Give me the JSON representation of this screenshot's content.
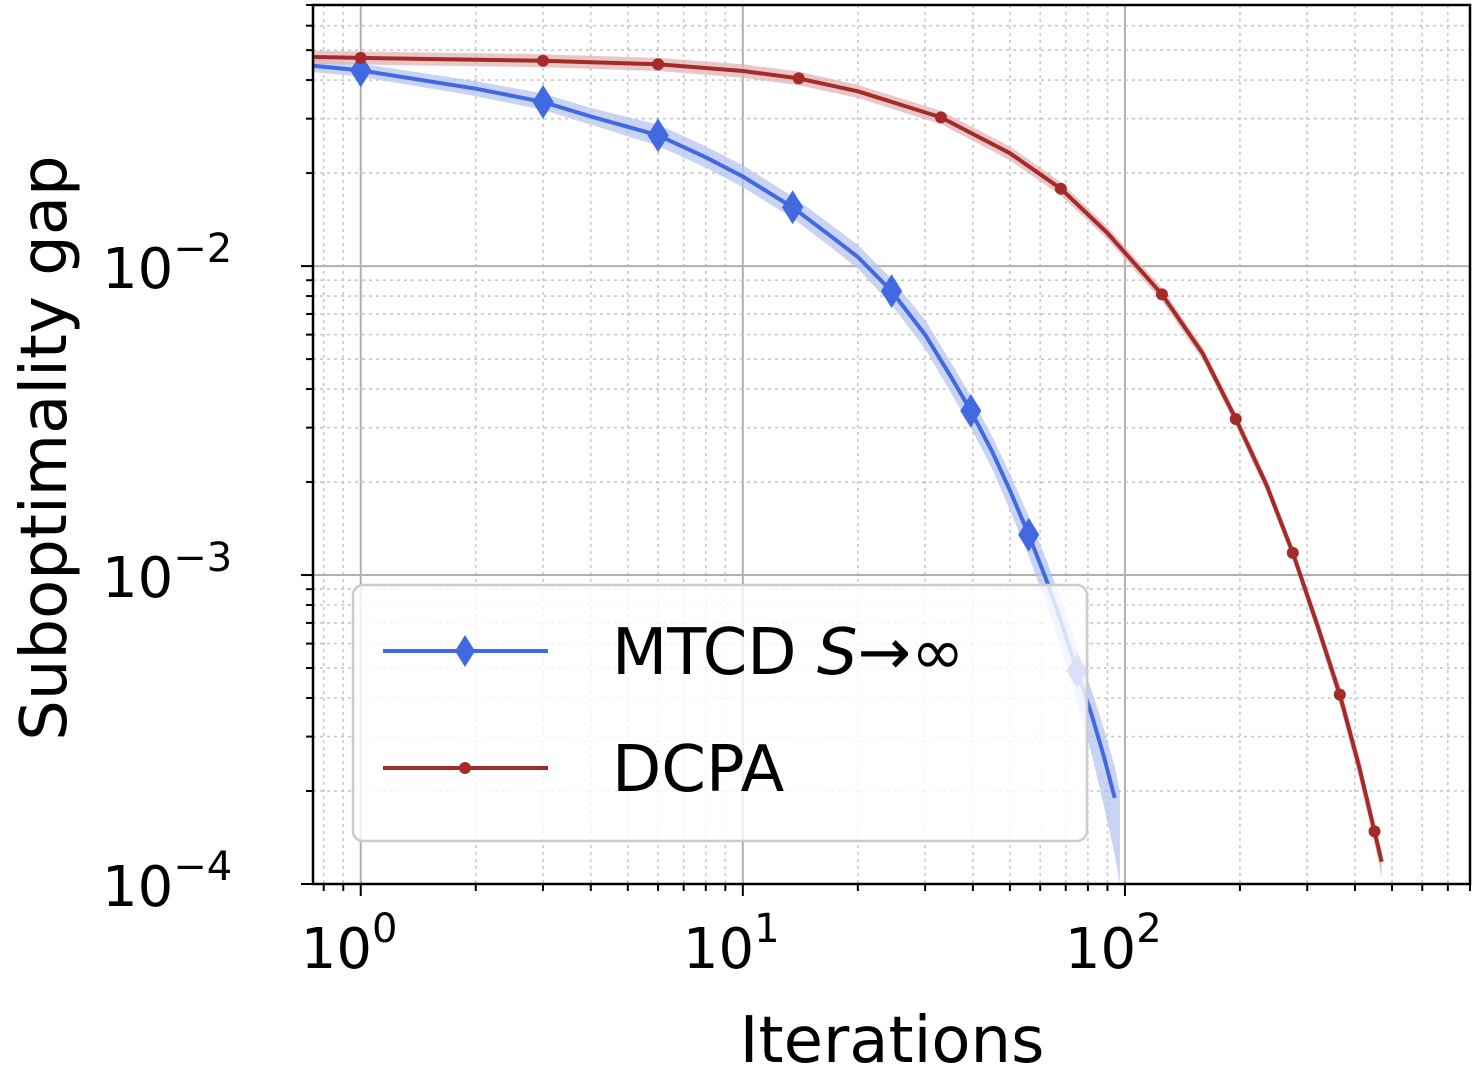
{
  "chart_data": {
    "type": "line",
    "xlabel": "Iterations",
    "ylabel": "Suboptimality gap",
    "x_scale": "log",
    "y_scale": "log",
    "xlim": [
      0.75,
      800
    ],
    "ylim": [
      0.0001,
      0.07
    ],
    "grid": "major and minor, on",
    "legend_position": "lower-left",
    "x_ticks": [
      {
        "base": "10",
        "exp": "0"
      },
      {
        "base": "10",
        "exp": "1"
      },
      {
        "base": "10",
        "exp": "2"
      }
    ],
    "y_ticks": [
      {
        "base": "10",
        "exp": "−2"
      },
      {
        "base": "10",
        "exp": "−3"
      },
      {
        "base": "10",
        "exp": "−4"
      }
    ],
    "series": [
      {
        "name": "MTCD S→∞",
        "legend_main": "MTCD ",
        "legend_italic": "S",
        "legend_tail": "→∞",
        "color": "#4169e1",
        "band_color": "#b7c4ef",
        "marker": "diamond",
        "points": [
          [
            0.75,
            0.0445
          ],
          [
            1,
            0.043
          ],
          [
            2,
            0.0375
          ],
          [
            3,
            0.034
          ],
          [
            4,
            0.0305
          ],
          [
            6,
            0.0265
          ],
          [
            8,
            0.0225
          ],
          [
            10,
            0.0195
          ],
          [
            13.5,
            0.0155
          ],
          [
            17,
            0.0125
          ],
          [
            20,
            0.0107
          ],
          [
            24.5,
            0.0083
          ],
          [
            30,
            0.006
          ],
          [
            35,
            0.0044
          ],
          [
            39.5,
            0.0034
          ],
          [
            45,
            0.0025
          ],
          [
            50,
            0.00188
          ],
          [
            56,
            0.00135
          ],
          [
            62,
            0.00098
          ],
          [
            68,
            0.00071
          ],
          [
            75,
            0.00049
          ],
          [
            82,
            0.00035
          ],
          [
            88,
            0.00026
          ],
          [
            94,
            0.00019
          ]
        ],
        "band_low": [
          [
            0.75,
            0.0425
          ],
          [
            1,
            0.041
          ],
          [
            2,
            0.0355
          ],
          [
            3,
            0.032
          ],
          [
            4,
            0.0287
          ],
          [
            6,
            0.0245
          ],
          [
            8,
            0.0208
          ],
          [
            10,
            0.018
          ],
          [
            13.5,
            0.0143
          ],
          [
            17,
            0.0115
          ],
          [
            20,
            0.0098
          ],
          [
            24.5,
            0.0075
          ],
          [
            30,
            0.0054
          ],
          [
            35,
            0.0039
          ],
          [
            39.5,
            0.003
          ],
          [
            45,
            0.0022
          ],
          [
            50,
            0.00162
          ],
          [
            56,
            0.00115
          ],
          [
            62,
            0.00082
          ],
          [
            68,
            0.00058
          ],
          [
            75,
            0.00039
          ],
          [
            82,
            0.00026
          ],
          [
            88,
            0.00018
          ],
          [
            94,
            0.000125
          ],
          [
            97,
            0.0001
          ]
        ],
        "band_high": [
          [
            0.75,
            0.0468
          ],
          [
            1,
            0.0452
          ],
          [
            2,
            0.0397
          ],
          [
            3,
            0.0362
          ],
          [
            4,
            0.0325
          ],
          [
            6,
            0.0287
          ],
          [
            8,
            0.0244
          ],
          [
            10,
            0.0212
          ],
          [
            13.5,
            0.0168
          ],
          [
            17,
            0.0136
          ],
          [
            20,
            0.0117
          ],
          [
            24.5,
            0.0091
          ],
          [
            30,
            0.0067
          ],
          [
            35,
            0.0049
          ],
          [
            39.5,
            0.0038
          ],
          [
            45,
            0.0028
          ],
          [
            50,
            0.00213
          ],
          [
            56,
            0.00155
          ],
          [
            62,
            0.00114
          ],
          [
            68,
            0.00083
          ],
          [
            75,
            0.00058
          ],
          [
            82,
            0.00042
          ],
          [
            88,
            0.00032
          ],
          [
            94,
            0.00024
          ],
          [
            97,
            0.0002
          ]
        ],
        "markers": [
          [
            1,
            0.043
          ],
          [
            3,
            0.034
          ],
          [
            6,
            0.0265
          ],
          [
            13.5,
            0.0155
          ],
          [
            24.5,
            0.0083
          ],
          [
            39.5,
            0.0034
          ],
          [
            56,
            0.00135
          ],
          [
            75,
            0.00049
          ]
        ]
      },
      {
        "name": "DCPA",
        "legend_main": "DCPA",
        "legend_italic": "",
        "legend_tail": "",
        "color": "#a52a2a",
        "band_color": "#e2b4b4",
        "marker": "circle",
        "points": [
          [
            0.75,
            0.0475
          ],
          [
            1,
            0.0472
          ],
          [
            3,
            0.0462
          ],
          [
            6,
            0.045
          ],
          [
            10,
            0.0428
          ],
          [
            14,
            0.0405
          ],
          [
            20,
            0.0368
          ],
          [
            33,
            0.0303
          ],
          [
            50,
            0.0232
          ],
          [
            68,
            0.0178
          ],
          [
            90,
            0.0128
          ],
          [
            125,
            0.0081
          ],
          [
            160,
            0.0052
          ],
          [
            195,
            0.0032
          ],
          [
            235,
            0.00195
          ],
          [
            275,
            0.00118
          ],
          [
            320,
            0.00068
          ],
          [
            365,
            0.00041
          ],
          [
            410,
            0.00024
          ],
          [
            450,
            0.000148
          ],
          [
            470,
            0.000118
          ]
        ],
        "band_low": [
          [
            0.75,
            0.0452
          ],
          [
            1,
            0.0449
          ],
          [
            3,
            0.044
          ],
          [
            6,
            0.0428
          ],
          [
            10,
            0.0407
          ],
          [
            14,
            0.0385
          ],
          [
            20,
            0.035
          ],
          [
            33,
            0.0288
          ],
          [
            50,
            0.022
          ],
          [
            68,
            0.0169
          ],
          [
            90,
            0.0122
          ],
          [
            125,
            0.0077
          ],
          [
            160,
            0.00495
          ],
          [
            195,
            0.00305
          ],
          [
            235,
            0.00185
          ],
          [
            275,
            0.00112
          ],
          [
            320,
            0.00064
          ],
          [
            365,
            0.00038
          ],
          [
            410,
            0.00022
          ],
          [
            450,
            0.000135
          ],
          [
            470,
            0.000105
          ]
        ],
        "band_high": [
          [
            0.75,
            0.0498
          ],
          [
            1,
            0.0495
          ],
          [
            3,
            0.0485
          ],
          [
            6,
            0.0472
          ],
          [
            10,
            0.045
          ],
          [
            14,
            0.0426
          ],
          [
            20,
            0.0386
          ],
          [
            33,
            0.0318
          ],
          [
            50,
            0.0244
          ],
          [
            68,
            0.0187
          ],
          [
            90,
            0.0134
          ],
          [
            125,
            0.0085
          ],
          [
            160,
            0.00545
          ],
          [
            195,
            0.00335
          ],
          [
            235,
            0.00205
          ],
          [
            275,
            0.00124
          ],
          [
            320,
            0.00072
          ],
          [
            365,
            0.00044
          ],
          [
            410,
            0.00026
          ],
          [
            450,
            0.00016
          ],
          [
            470,
            0.000128
          ]
        ],
        "markers": [
          [
            1,
            0.0472
          ],
          [
            3,
            0.0462
          ],
          [
            6,
            0.045
          ],
          [
            14,
            0.0405
          ],
          [
            33,
            0.0303
          ],
          [
            68,
            0.0178
          ],
          [
            125,
            0.0081
          ],
          [
            195,
            0.0032
          ],
          [
            275,
            0.00118
          ],
          [
            365,
            0.00041
          ],
          [
            450,
            0.000148
          ]
        ]
      }
    ]
  }
}
